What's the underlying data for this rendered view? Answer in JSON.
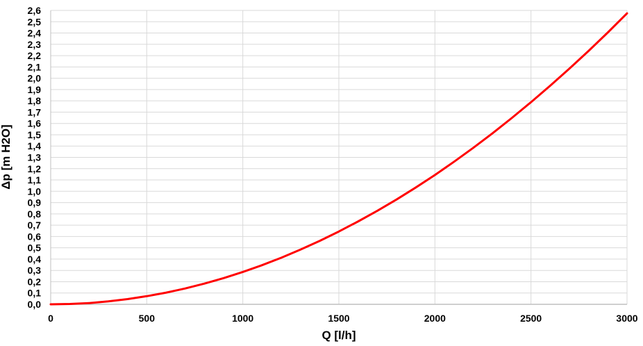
{
  "chart_data": {
    "type": "line",
    "title": "",
    "xlabel": "Q [l/h]",
    "ylabel": "Δp [m H2O]",
    "xlim": [
      0,
      3000
    ],
    "ylim": [
      0,
      2.6
    ],
    "x_ticks": [
      0,
      500,
      1000,
      1500,
      2000,
      2500,
      3000
    ],
    "y_ticks": [
      "0,0",
      "0,1",
      "0,2",
      "0,3",
      "0,4",
      "0,5",
      "0,6",
      "0,7",
      "0,8",
      "0,9",
      "1,0",
      "1,1",
      "1,2",
      "1,3",
      "1,4",
      "1,5",
      "1,6",
      "1,7",
      "1,8",
      "1,9",
      "2,0",
      "2,1",
      "2,2",
      "2,3",
      "2,4",
      "2,5",
      "2,6"
    ],
    "grid": true,
    "legend": "none",
    "series": [
      {
        "color": "#ff0000",
        "x": [
          0,
          100,
          200,
          300,
          400,
          500,
          600,
          700,
          800,
          900,
          1000,
          1100,
          1200,
          1300,
          1400,
          1500,
          1600,
          1700,
          1800,
          1900,
          2000,
          2100,
          2200,
          2300,
          2400,
          2500,
          2600,
          2700,
          2800,
          2900,
          3000
        ],
        "y": [
          0,
          0.003,
          0.011,
          0.026,
          0.046,
          0.072,
          0.103,
          0.14,
          0.183,
          0.232,
          0.286,
          0.346,
          0.412,
          0.484,
          0.561,
          0.644,
          0.733,
          0.827,
          0.927,
          1.033,
          1.144,
          1.262,
          1.385,
          1.513,
          1.648,
          1.788,
          1.934,
          2.085,
          2.242,
          2.405,
          2.574
        ]
      }
    ]
  },
  "colors": {
    "grid": "#d9d9d9",
    "axis": "#bfbfbf",
    "curve": "#ff0000"
  }
}
